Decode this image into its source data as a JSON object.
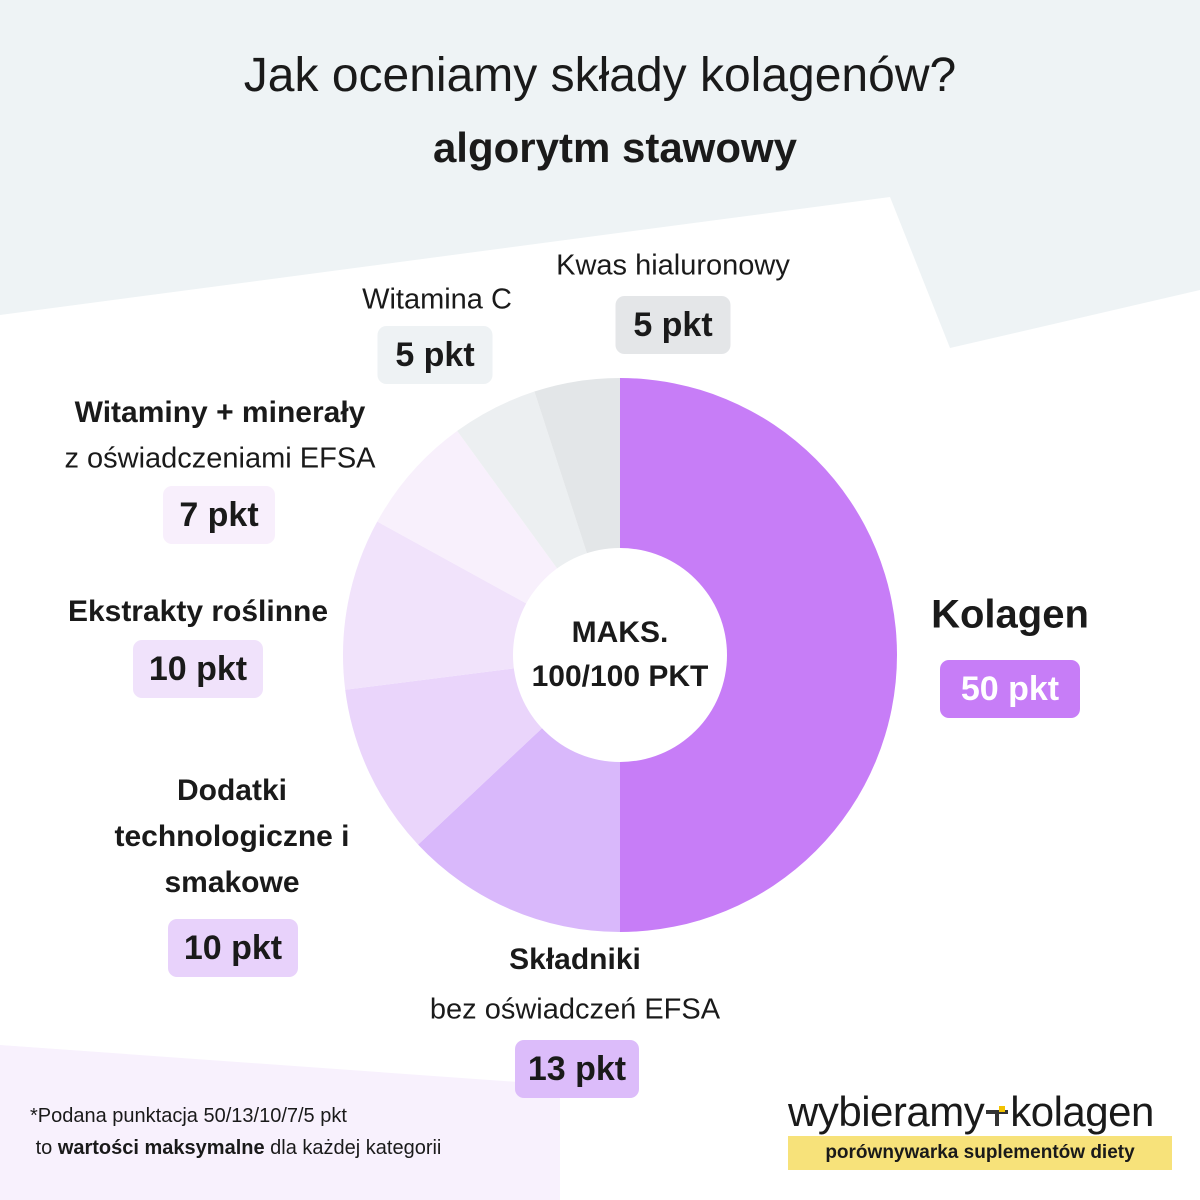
{
  "chart_data": {
    "type": "donut",
    "title": "Jak oceniamy składy kolagenów?",
    "subtitle": "algorytm stawowy",
    "center_label": [
      "MAKS.",
      "100/100 PKT"
    ],
    "categories": [
      "Kolagen",
      "Składniki",
      "Dodatki technologiczne i smakowe",
      "Ekstrakty roślinne",
      "Witaminy + minerały",
      "Witamina C",
      "Kwas hialuronowy"
    ],
    "category_notes": [
      null,
      "bez oświadczeń EFSA",
      null,
      null,
      "z oświadczeniami EFSA",
      null,
      null
    ],
    "values": [
      50,
      13,
      10,
      10,
      7,
      5,
      5
    ],
    "value_labels": [
      "50 pkt",
      "13 pkt",
      "10 pkt",
      "10 pkt",
      "7 pkt",
      "5 pkt",
      "5 pkt"
    ],
    "colors": [
      "#c77df7",
      "#d9b8fb",
      "#ead5fb",
      "#f1e3fb",
      "#f8f0fc",
      "#eceff1",
      "#e3e6e8"
    ]
  },
  "footnote": {
    "line1": "*Podana punktacja 50/13/10/7/5 pkt",
    "line2": {
      "before": "to",
      "bold": "wartości maksymalne",
      "after": "dla każdej kategorii"
    }
  },
  "brand": {
    "part1": "wybieramy",
    "part2": "kolagen",
    "tagline": "porównywarka suplementów diety"
  }
}
